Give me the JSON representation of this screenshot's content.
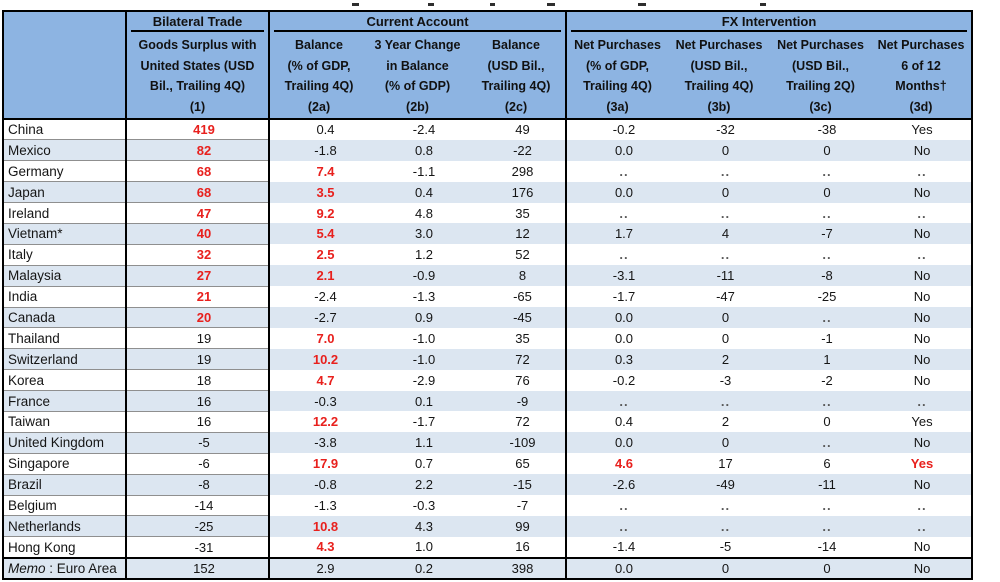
{
  "colors": {
    "header_bg": "#8db4e2",
    "stripe_bg": "#dce6f1",
    "accent_red": "#e8201d",
    "border_black": "#000000"
  },
  "table": {
    "groups": [
      "Bilateral Trade",
      "Current Account",
      "FX Intervention"
    ],
    "columns": [
      "Goods Surplus with\nUnited States (USD\nBil., Trailing 4Q)\n(1)",
      "Balance\n(% of GDP,\nTrailing 4Q)\n(2a)",
      "3 Year Change\nin Balance\n(% of GDP)\n(2b)",
      "Balance\n(USD Bil.,\nTrailing 4Q)\n(2c)",
      "Net Purchases\n(% of GDP,\nTrailing 4Q)\n(3a)",
      "Net Purchases\n(USD Bil.,\nTrailing 4Q)\n(3b)",
      "Net Purchases\n(USD Bil.,\nTrailing 2Q)\n(3c)",
      "Net Purchases\n6 of 12\nMonths†\n(3d)"
    ],
    "rows": [
      {
        "country": "China",
        "cells": [
          "419",
          "0.4",
          "-2.4",
          "49",
          "-0.2",
          "-32",
          "-38",
          "Yes"
        ],
        "red": [
          0
        ]
      },
      {
        "country": "Mexico",
        "cells": [
          "82",
          "-1.8",
          "0.8",
          "-22",
          "0.0",
          "0",
          "0",
          "No"
        ],
        "red": [
          0
        ]
      },
      {
        "country": "Germany",
        "cells": [
          "68",
          "7.4",
          "-1.1",
          "298",
          "..",
          "..",
          "..",
          ".."
        ],
        "red": [
          0,
          1
        ]
      },
      {
        "country": "Japan",
        "cells": [
          "68",
          "3.5",
          "0.4",
          "176",
          "0.0",
          "0",
          "0",
          "No"
        ],
        "red": [
          0,
          1
        ]
      },
      {
        "country": "Ireland",
        "cells": [
          "47",
          "9.2",
          "4.8",
          "35",
          "..",
          "..",
          "..",
          ".."
        ],
        "red": [
          0,
          1
        ]
      },
      {
        "country": "Vietnam*",
        "cells": [
          "40",
          "5.4",
          "3.0",
          "12",
          "1.7",
          "4",
          "-7",
          "No"
        ],
        "red": [
          0,
          1
        ]
      },
      {
        "country": "Italy",
        "cells": [
          "32",
          "2.5",
          "1.2",
          "52",
          "..",
          "..",
          "..",
          ".."
        ],
        "red": [
          0,
          1
        ]
      },
      {
        "country": "Malaysia",
        "cells": [
          "27",
          "2.1",
          "-0.9",
          "8",
          "-3.1",
          "-11",
          "-8",
          "No"
        ],
        "red": [
          0,
          1
        ]
      },
      {
        "country": "India",
        "cells": [
          "21",
          "-2.4",
          "-1.3",
          "-65",
          "-1.7",
          "-47",
          "-25",
          "No"
        ],
        "red": [
          0
        ]
      },
      {
        "country": "Canada",
        "cells": [
          "20",
          "-2.7",
          "0.9",
          "-45",
          "0.0",
          "0",
          "..",
          "No"
        ],
        "red": [
          0
        ]
      },
      {
        "country": "Thailand",
        "cells": [
          "19",
          "7.0",
          "-1.0",
          "35",
          "0.0",
          "0",
          "-1",
          "No"
        ],
        "red": [
          1
        ]
      },
      {
        "country": "Switzerland",
        "cells": [
          "19",
          "10.2",
          "-1.0",
          "72",
          "0.3",
          "2",
          "1",
          "No"
        ],
        "red": [
          1
        ]
      },
      {
        "country": "Korea",
        "cells": [
          "18",
          "4.7",
          "-2.9",
          "76",
          "-0.2",
          "-3",
          "-2",
          "No"
        ],
        "red": [
          1
        ]
      },
      {
        "country": "France",
        "cells": [
          "16",
          "-0.3",
          "0.1",
          "-9",
          "..",
          "..",
          "..",
          ".."
        ],
        "red": []
      },
      {
        "country": "Taiwan",
        "cells": [
          "16",
          "12.2",
          "-1.7",
          "72",
          "0.4",
          "2",
          "0",
          "Yes"
        ],
        "red": [
          1
        ]
      },
      {
        "country": "United Kingdom",
        "cells": [
          "-5",
          "-3.8",
          "1.1",
          "-109",
          "0.0",
          "0",
          "..",
          "No"
        ],
        "red": []
      },
      {
        "country": "Singapore",
        "cells": [
          "-6",
          "17.9",
          "0.7",
          "65",
          "4.6",
          "17",
          "6",
          "Yes"
        ],
        "red": [
          1,
          4,
          7
        ]
      },
      {
        "country": "Brazil",
        "cells": [
          "-8",
          "-0.8",
          "2.2",
          "-15",
          "-2.6",
          "-49",
          "-11",
          "No"
        ],
        "red": []
      },
      {
        "country": "Belgium",
        "cells": [
          "-14",
          "-1.3",
          "-0.3",
          "-7",
          "..",
          "..",
          "..",
          ".."
        ],
        "red": []
      },
      {
        "country": "Netherlands",
        "cells": [
          "-25",
          "10.8",
          "4.3",
          "99",
          "..",
          "..",
          "..",
          ".."
        ],
        "red": [
          1
        ]
      },
      {
        "country": "Hong Kong",
        "cells": [
          "-31",
          "4.3",
          "1.0",
          "16",
          "-1.4",
          "-5",
          "-14",
          "No"
        ],
        "red": [
          1
        ]
      },
      {
        "country_italic": "Memo",
        "country_rest": " : Euro Area",
        "memo": true,
        "cells": [
          "152",
          "2.9",
          "0.2",
          "398",
          "0.0",
          "0",
          "0",
          "No"
        ],
        "red": []
      }
    ]
  }
}
